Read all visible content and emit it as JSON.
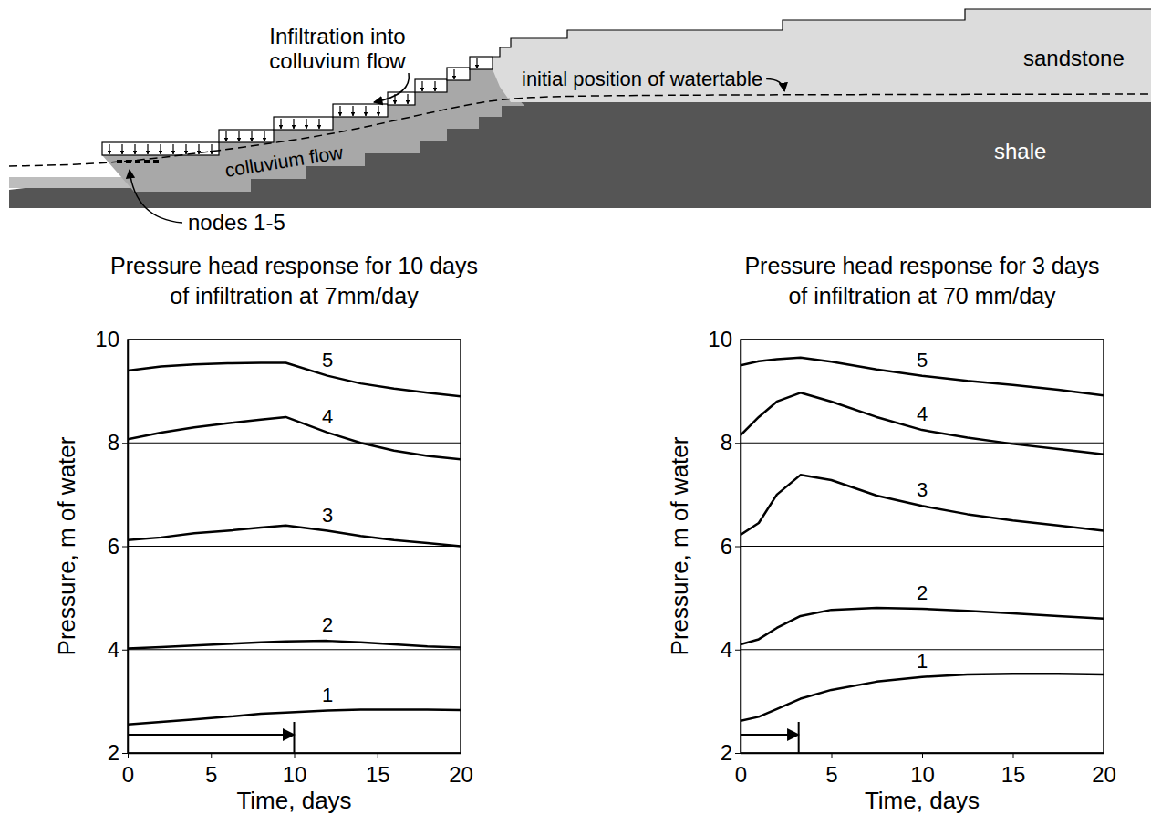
{
  "diagram": {
    "infiltration_label": [
      "Infiltration into",
      "colluvium flow"
    ],
    "watertable_label": "initial position of watertable",
    "sandstone_label": "sandstone",
    "shale_label": "shale",
    "colluvium_label": "colluvium flow",
    "nodes_label": "nodes 1-5"
  },
  "chart_data": [
    {
      "type": "line",
      "title": [
        "Pressure head response for 10 days",
        "of infiltration at 7mm/day"
      ],
      "x_label": "Time, days",
      "y_label": "Pressure, m of water",
      "x": [
        0,
        2,
        4,
        6,
        8,
        9.5,
        12,
        14,
        16,
        18,
        20
      ],
      "series": [
        {
          "name": "1",
          "color": "#000000",
          "values": [
            2.55,
            2.6,
            2.65,
            2.7,
            2.76,
            2.78,
            2.82,
            2.84,
            2.84,
            2.84,
            2.83
          ]
        },
        {
          "name": "2",
          "color": "#000000",
          "values": [
            4.02,
            4.05,
            4.08,
            4.11,
            4.14,
            4.16,
            4.17,
            4.14,
            4.1,
            4.06,
            4.04
          ]
        },
        {
          "name": "3",
          "color": "#000000",
          "values": [
            6.12,
            6.17,
            6.25,
            6.3,
            6.36,
            6.4,
            6.3,
            6.2,
            6.12,
            6.06,
            6.0
          ]
        },
        {
          "name": "4",
          "color": "#000000",
          "values": [
            8.07,
            8.2,
            8.3,
            8.38,
            8.45,
            8.5,
            8.2,
            8.0,
            7.85,
            7.75,
            7.68
          ]
        },
        {
          "name": "5",
          "color": "#000000",
          "values": [
            9.4,
            9.48,
            9.52,
            9.54,
            9.55,
            9.55,
            9.3,
            9.15,
            9.05,
            8.97,
            8.9
          ]
        }
      ],
      "infiltration_period": [
        0,
        10
      ],
      "xlim": [
        0,
        20
      ],
      "xticks": [
        0,
        5,
        10,
        15,
        20
      ],
      "ylim": [
        2,
        10
      ],
      "yticks": [
        2,
        4,
        6,
        8,
        10
      ],
      "grid": true
    },
    {
      "type": "line",
      "title": [
        "Pressure head response for 3 days",
        "of infiltration at 70 mm/day"
      ],
      "x_label": "Time, days",
      "y_label": "Pressure, m of water",
      "x": [
        0,
        1,
        2,
        3.3,
        5,
        7.5,
        10,
        12.5,
        15,
        17.5,
        20
      ],
      "series": [
        {
          "name": "1",
          "color": "#000000",
          "values": [
            2.62,
            2.7,
            2.85,
            3.05,
            3.22,
            3.38,
            3.47,
            3.52,
            3.53,
            3.53,
            3.52
          ]
        },
        {
          "name": "2",
          "color": "#000000",
          "values": [
            4.1,
            4.2,
            4.42,
            4.65,
            4.77,
            4.81,
            4.79,
            4.75,
            4.7,
            4.65,
            4.6
          ]
        },
        {
          "name": "3",
          "color": "#000000",
          "values": [
            6.22,
            6.45,
            7.0,
            7.38,
            7.28,
            6.98,
            6.78,
            6.62,
            6.5,
            6.4,
            6.3
          ]
        },
        {
          "name": "4",
          "color": "#000000",
          "values": [
            8.15,
            8.5,
            8.8,
            8.97,
            8.8,
            8.5,
            8.25,
            8.1,
            7.98,
            7.88,
            7.78
          ]
        },
        {
          "name": "5",
          "color": "#000000",
          "values": [
            9.5,
            9.58,
            9.62,
            9.65,
            9.57,
            9.42,
            9.3,
            9.2,
            9.12,
            9.03,
            8.92
          ]
        }
      ],
      "infiltration_period": [
        0,
        3.2
      ],
      "xlim": [
        0,
        20
      ],
      "xticks": [
        0,
        5,
        10,
        15,
        20
      ],
      "ylim": [
        2,
        10
      ],
      "yticks": [
        2,
        4,
        6,
        8,
        10
      ],
      "grid": true
    }
  ]
}
